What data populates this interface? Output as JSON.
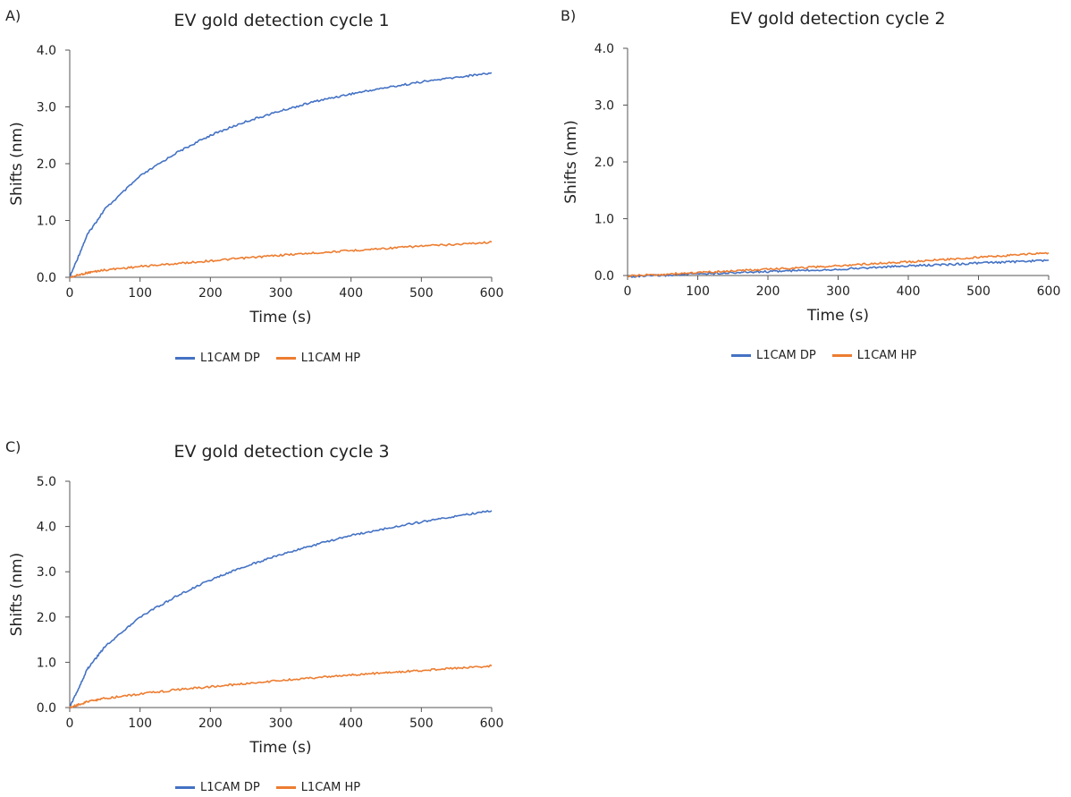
{
  "colors": {
    "dp": "#4472C4",
    "hp": "#ED7D31",
    "axis": "#555555"
  },
  "chart_data": [
    {
      "panel": "A)",
      "type": "line",
      "title": "EV gold detection cycle 1",
      "xlabel": "Time (s)",
      "ylabel": "Shifts (nm)",
      "xlim": [
        0,
        600
      ],
      "ylim": [
        0,
        4.0
      ],
      "xticks": [
        "0",
        "100",
        "200",
        "300",
        "400",
        "500",
        "600"
      ],
      "yticks": [
        "0.0",
        "1.0",
        "2.0",
        "3.0",
        "4.0"
      ],
      "legend": "bottom",
      "series": [
        {
          "name": "L1CAM DP",
          "x": [
            0,
            25,
            50,
            100,
            150,
            200,
            250,
            300,
            350,
            400,
            450,
            500,
            550,
            600
          ],
          "values": [
            0,
            0.75,
            1.2,
            1.78,
            2.18,
            2.5,
            2.74,
            2.93,
            3.1,
            3.23,
            3.34,
            3.44,
            3.52,
            3.6
          ]
        },
        {
          "name": "L1CAM HP",
          "x": [
            0,
            25,
            50,
            100,
            150,
            200,
            250,
            300,
            350,
            400,
            450,
            500,
            550,
            600
          ],
          "values": [
            0,
            0.08,
            0.13,
            0.19,
            0.24,
            0.29,
            0.34,
            0.39,
            0.43,
            0.47,
            0.51,
            0.55,
            0.58,
            0.62
          ]
        }
      ]
    },
    {
      "panel": "B)",
      "type": "line",
      "title": "EV gold detection cycle 2",
      "xlabel": "Time (s)",
      "ylabel": "Shifts (nm)",
      "xlim": [
        0,
        600
      ],
      "ylim": [
        0,
        4.0
      ],
      "xticks": [
        "0",
        "100",
        "200",
        "300",
        "400",
        "500",
        "600"
      ],
      "yticks": [
        "0.0",
        "1.0",
        "2.0",
        "3.0",
        "4.0"
      ],
      "legend": "bottom",
      "series": [
        {
          "name": "L1CAM DP",
          "x": [
            0,
            50,
            100,
            150,
            200,
            250,
            300,
            350,
            400,
            450,
            500,
            550,
            600
          ],
          "values": [
            -0.02,
            0.0,
            0.03,
            0.05,
            0.07,
            0.09,
            0.11,
            0.14,
            0.17,
            0.19,
            0.22,
            0.24,
            0.27
          ]
        },
        {
          "name": "L1CAM HP",
          "x": [
            0,
            50,
            100,
            150,
            200,
            250,
            300,
            350,
            400,
            450,
            500,
            550,
            600
          ],
          "values": [
            -0.01,
            0.02,
            0.05,
            0.08,
            0.11,
            0.14,
            0.17,
            0.21,
            0.24,
            0.28,
            0.32,
            0.36,
            0.4
          ]
        }
      ]
    },
    {
      "panel": "C)",
      "type": "line",
      "title": "EV gold detection cycle 3",
      "xlabel": "Time (s)",
      "ylabel": "Shifts (nm)",
      "xlim": [
        0,
        600
      ],
      "ylim": [
        0,
        5.0
      ],
      "xticks": [
        "0",
        "100",
        "200",
        "300",
        "400",
        "500",
        "600"
      ],
      "yticks": [
        "0.0",
        "1.0",
        "2.0",
        "3.0",
        "4.0",
        "5.0"
      ],
      "legend": "bottom",
      "series": [
        {
          "name": "L1CAM DP",
          "x": [
            0,
            25,
            50,
            100,
            150,
            200,
            250,
            300,
            350,
            400,
            450,
            500,
            550,
            600
          ],
          "values": [
            0,
            0.85,
            1.35,
            2.0,
            2.45,
            2.82,
            3.12,
            3.38,
            3.6,
            3.8,
            3.96,
            4.1,
            4.23,
            4.35
          ]
        },
        {
          "name": "L1CAM HP",
          "x": [
            0,
            25,
            50,
            100,
            150,
            200,
            250,
            300,
            350,
            400,
            450,
            500,
            550,
            600
          ],
          "values": [
            0,
            0.13,
            0.2,
            0.3,
            0.39,
            0.46,
            0.53,
            0.6,
            0.66,
            0.72,
            0.77,
            0.82,
            0.87,
            0.92
          ]
        }
      ]
    }
  ]
}
